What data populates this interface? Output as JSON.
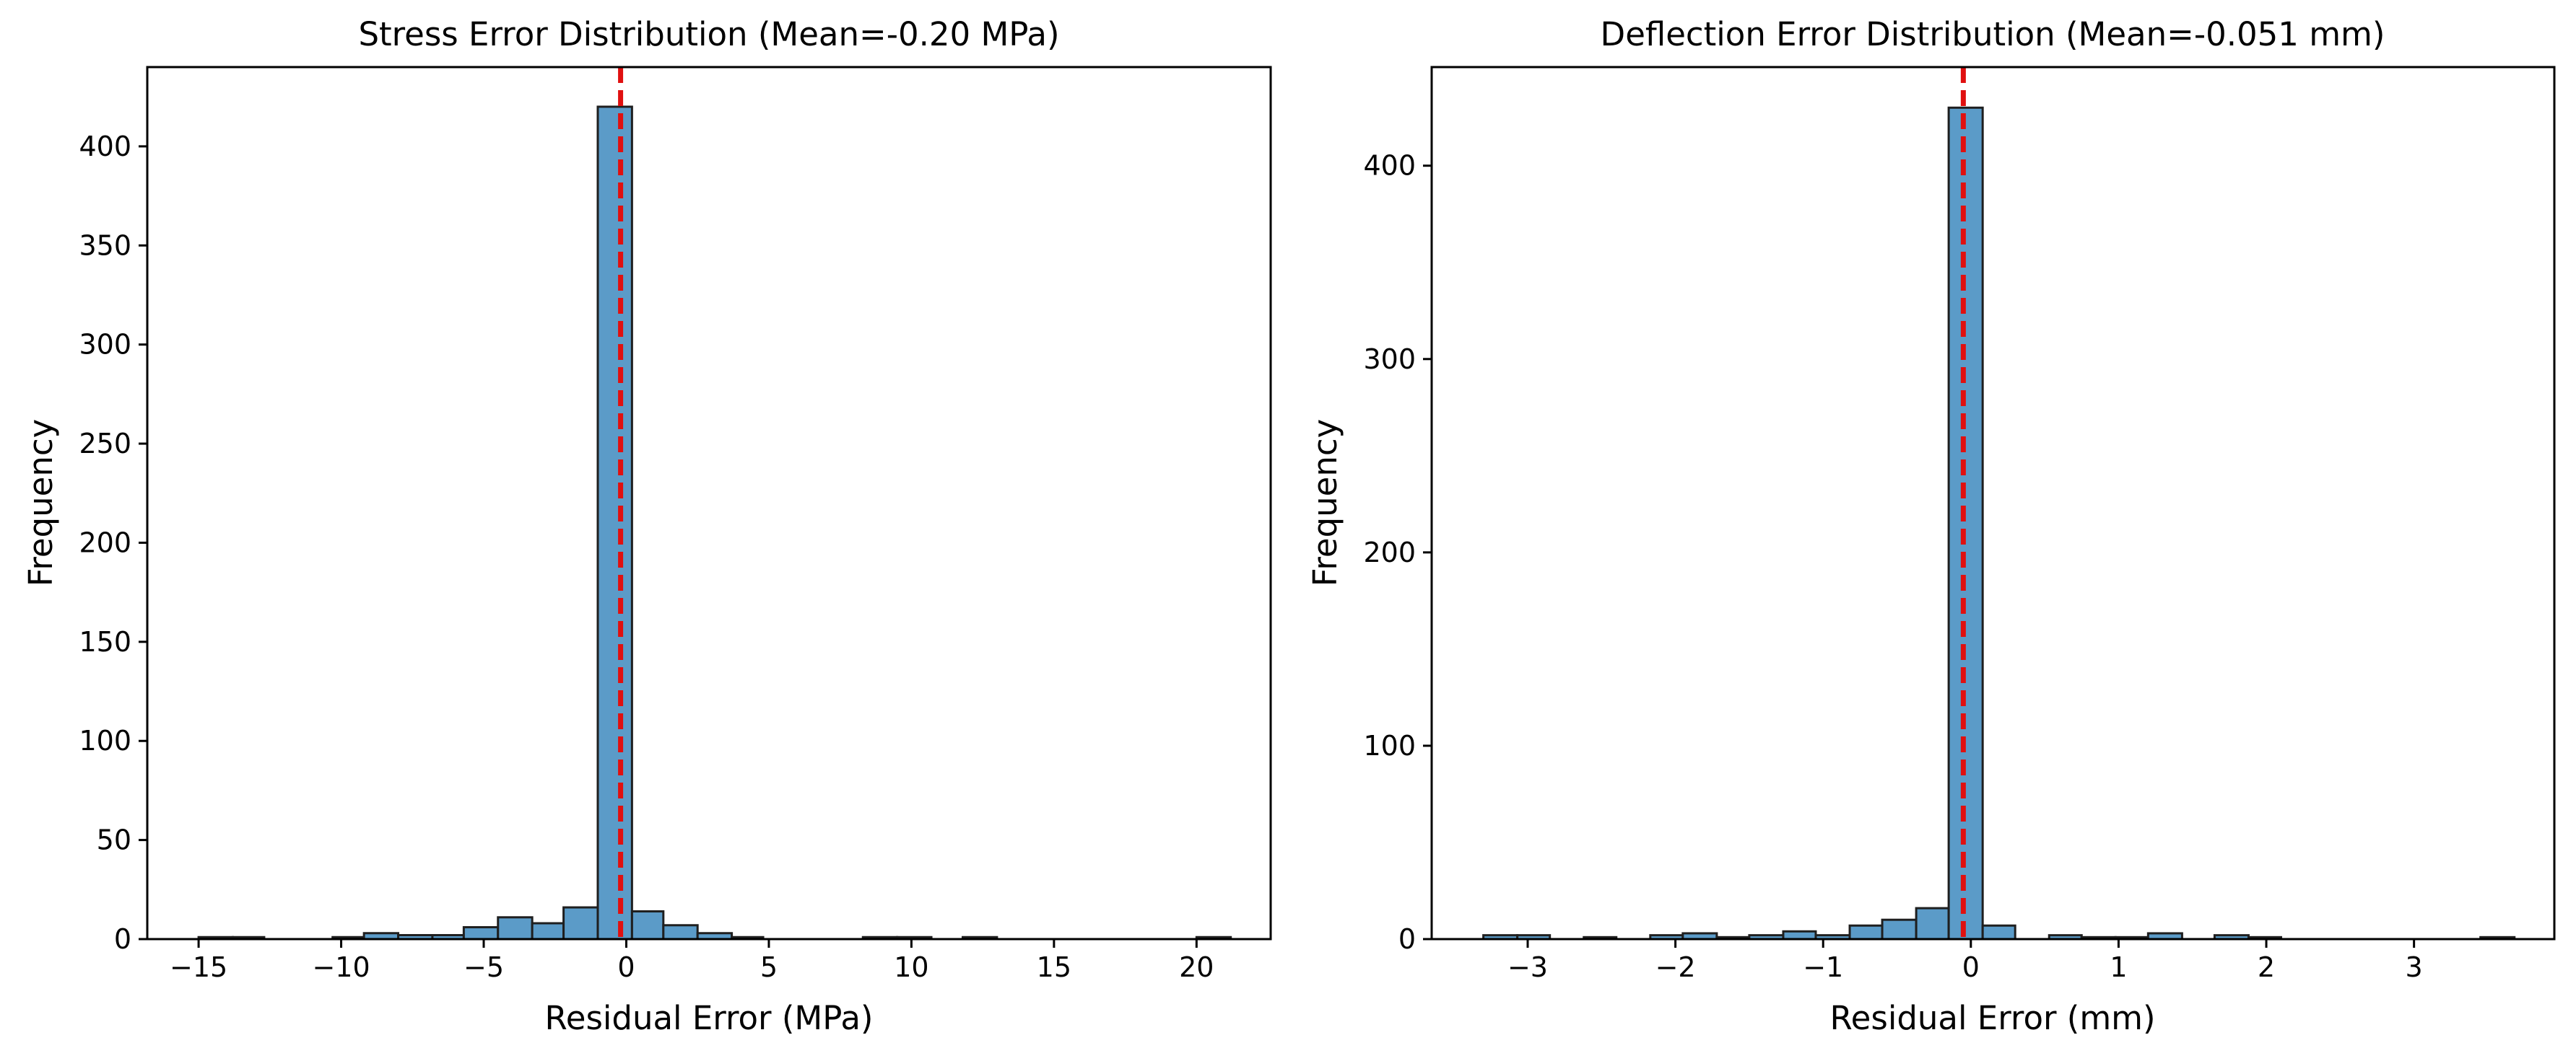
{
  "figure": {
    "bar_color": "#5b9bc8",
    "bar_edge_color": "#1f1f1f",
    "mean_line_color": "#e01010"
  },
  "chart_data": [
    {
      "type": "bar",
      "title": "Stress Error Distribution (Mean=-0.20 MPa)",
      "xlabel": "Residual Error (MPa)",
      "ylabel": "Frequency",
      "xlim": [
        -16.8,
        22.6
      ],
      "ylim": [
        0,
        440
      ],
      "xticks": [
        -15,
        -10,
        -5,
        0,
        5,
        10,
        15,
        20
      ],
      "yticks": [
        0,
        50,
        100,
        150,
        200,
        250,
        300,
        350,
        400
      ],
      "xtick_labels": [
        "−15",
        "−10",
        "−5",
        "0",
        "5",
        "10",
        "15",
        "20"
      ],
      "ytick_labels": [
        "0",
        "50",
        "100",
        "150",
        "200",
        "250",
        "300",
        "350",
        "400"
      ],
      "grid": false,
      "mean_line_x": -0.2,
      "bins": [
        {
          "x0": -15.0,
          "x1": -13.8,
          "count": 1
        },
        {
          "x0": -13.8,
          "x1": -12.7,
          "count": 1
        },
        {
          "x0": -12.7,
          "x1": -11.5,
          "count": 0
        },
        {
          "x0": -11.5,
          "x1": -10.3,
          "count": 0
        },
        {
          "x0": -10.3,
          "x1": -9.2,
          "count": 1
        },
        {
          "x0": -9.2,
          "x1": -8.0,
          "count": 3
        },
        {
          "x0": -8.0,
          "x1": -6.8,
          "count": 2
        },
        {
          "x0": -6.8,
          "x1": -5.7,
          "count": 2
        },
        {
          "x0": -5.7,
          "x1": -4.5,
          "count": 6
        },
        {
          "x0": -4.5,
          "x1": -3.3,
          "count": 11
        },
        {
          "x0": -3.3,
          "x1": -2.2,
          "count": 8
        },
        {
          "x0": -2.2,
          "x1": -1.0,
          "count": 16
        },
        {
          "x0": -1.0,
          "x1": 0.2,
          "count": 420
        },
        {
          "x0": 0.2,
          "x1": 1.3,
          "count": 14
        },
        {
          "x0": 1.3,
          "x1": 2.5,
          "count": 7
        },
        {
          "x0": 2.5,
          "x1": 3.7,
          "count": 3
        },
        {
          "x0": 3.7,
          "x1": 4.8,
          "count": 1
        },
        {
          "x0": 4.8,
          "x1": 6.0,
          "count": 0
        },
        {
          "x0": 6.0,
          "x1": 7.2,
          "count": 0
        },
        {
          "x0": 7.2,
          "x1": 8.3,
          "count": 0
        },
        {
          "x0": 8.3,
          "x1": 9.5,
          "count": 1
        },
        {
          "x0": 9.5,
          "x1": 10.7,
          "count": 1
        },
        {
          "x0": 10.7,
          "x1": 11.8,
          "count": 0
        },
        {
          "x0": 11.8,
          "x1": 13.0,
          "count": 1
        },
        {
          "x0": 13.0,
          "x1": 14.2,
          "count": 0
        },
        {
          "x0": 14.2,
          "x1": 15.3,
          "count": 0
        },
        {
          "x0": 15.3,
          "x1": 16.5,
          "count": 0
        },
        {
          "x0": 16.5,
          "x1": 17.7,
          "count": 0
        },
        {
          "x0": 17.7,
          "x1": 18.8,
          "count": 0
        },
        {
          "x0": 18.8,
          "x1": 20.0,
          "count": 0
        },
        {
          "x0": 20.0,
          "x1": 21.2,
          "count": 1
        }
      ]
    },
    {
      "type": "bar",
      "title": "Deflection Error Distribution (Mean=-0.051 mm)",
      "xlabel": "Residual Error (mm)",
      "ylabel": "Frequency",
      "xlim": [
        -3.65,
        3.95
      ],
      "ylim": [
        0,
        451
      ],
      "xticks": [
        -3,
        -2,
        -1,
        0,
        1,
        2,
        3
      ],
      "yticks": [
        0,
        100,
        200,
        300,
        400
      ],
      "xtick_labels": [
        "−3",
        "−2",
        "−1",
        "0",
        "1",
        "2",
        "3"
      ],
      "ytick_labels": [
        "0",
        "100",
        "200",
        "300",
        "400"
      ],
      "grid": false,
      "mean_line_x": -0.051,
      "bins": [
        {
          "x0": -3.3,
          "x1": -3.07,
          "count": 2
        },
        {
          "x0": -3.07,
          "x1": -2.85,
          "count": 2
        },
        {
          "x0": -2.85,
          "x1": -2.62,
          "count": 0
        },
        {
          "x0": -2.62,
          "x1": -2.4,
          "count": 1
        },
        {
          "x0": -2.4,
          "x1": -2.17,
          "count": 0
        },
        {
          "x0": -2.17,
          "x1": -1.95,
          "count": 2
        },
        {
          "x0": -1.95,
          "x1": -1.72,
          "count": 3
        },
        {
          "x0": -1.72,
          "x1": -1.5,
          "count": 1
        },
        {
          "x0": -1.5,
          "x1": -1.27,
          "count": 2
        },
        {
          "x0": -1.27,
          "x1": -1.05,
          "count": 4
        },
        {
          "x0": -1.05,
          "x1": -0.82,
          "count": 2
        },
        {
          "x0": -0.82,
          "x1": -0.6,
          "count": 7
        },
        {
          "x0": -0.6,
          "x1": -0.37,
          "count": 10
        },
        {
          "x0": -0.37,
          "x1": -0.15,
          "count": 16
        },
        {
          "x0": -0.15,
          "x1": 0.08,
          "count": 430
        },
        {
          "x0": 0.08,
          "x1": 0.3,
          "count": 7
        },
        {
          "x0": 0.3,
          "x1": 0.53,
          "count": 0
        },
        {
          "x0": 0.53,
          "x1": 0.75,
          "count": 2
        },
        {
          "x0": 0.75,
          "x1": 0.98,
          "count": 1
        },
        {
          "x0": 0.98,
          "x1": 1.2,
          "count": 1
        },
        {
          "x0": 1.2,
          "x1": 1.43,
          "count": 3
        },
        {
          "x0": 1.43,
          "x1": 1.65,
          "count": 0
        },
        {
          "x0": 1.65,
          "x1": 1.88,
          "count": 2
        },
        {
          "x0": 1.88,
          "x1": 2.1,
          "count": 1
        },
        {
          "x0": 2.1,
          "x1": 2.33,
          "count": 0
        },
        {
          "x0": 2.33,
          "x1": 2.55,
          "count": 0
        },
        {
          "x0": 2.55,
          "x1": 2.78,
          "count": 0
        },
        {
          "x0": 2.78,
          "x1": 3.0,
          "count": 0
        },
        {
          "x0": 3.0,
          "x1": 3.23,
          "count": 0
        },
        {
          "x0": 3.23,
          "x1": 3.45,
          "count": 0
        },
        {
          "x0": 3.45,
          "x1": 3.68,
          "count": 1
        }
      ]
    }
  ]
}
